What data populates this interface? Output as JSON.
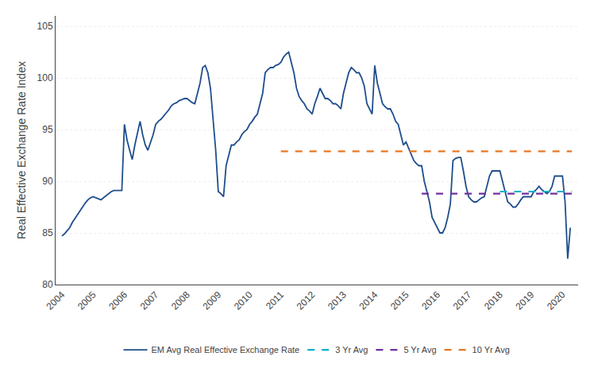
{
  "chart_data": {
    "type": "line",
    "ylabel": "Real Effective Exchange Rate Index",
    "xlim": [
      2003.8,
      2020.5
    ],
    "xticks": [
      2004,
      2005,
      2006,
      2007,
      2008,
      2009,
      2010,
      2011,
      2012,
      2013,
      2014,
      2015,
      2016,
      2017,
      2018,
      2019,
      2020
    ],
    "ylim": [
      80,
      106
    ],
    "yticks": [
      80,
      85,
      90,
      95,
      100,
      105
    ],
    "grid": true,
    "legend": "bottom",
    "series": [
      {
        "name": "EM Avg Real Effective Exchange Rate",
        "color": "#1f4e8c",
        "line_style": "solid",
        "x": [
          2004.0,
          2004.083,
          2004.167,
          2004.25,
          2004.333,
          2004.417,
          2004.5,
          2004.583,
          2004.667,
          2004.75,
          2004.833,
          2004.917,
          2005.0,
          2005.083,
          2005.167,
          2005.25,
          2005.333,
          2005.417,
          2005.5,
          2005.583,
          2005.667,
          2005.75,
          2005.833,
          2005.917,
          2006.0,
          2006.083,
          2006.167,
          2006.25,
          2006.333,
          2006.417,
          2006.5,
          2006.583,
          2006.667,
          2006.75,
          2006.833,
          2006.917,
          2007.0,
          2007.083,
          2007.167,
          2007.25,
          2007.333,
          2007.417,
          2007.5,
          2007.583,
          2007.667,
          2007.75,
          2007.833,
          2007.917,
          2008.0,
          2008.083,
          2008.167,
          2008.25,
          2008.333,
          2008.417,
          2008.5,
          2008.583,
          2008.667,
          2008.75,
          2008.833,
          2008.917,
          2009.0,
          2009.083,
          2009.167,
          2009.25,
          2009.333,
          2009.417,
          2009.5,
          2009.583,
          2009.667,
          2009.75,
          2009.833,
          2009.917,
          2010.0,
          2010.083,
          2010.167,
          2010.25,
          2010.333,
          2010.417,
          2010.5,
          2010.583,
          2010.667,
          2010.75,
          2010.833,
          2010.917,
          2011.0,
          2011.083,
          2011.167,
          2011.25,
          2011.333,
          2011.417,
          2011.5,
          2011.583,
          2011.667,
          2011.75,
          2011.833,
          2011.917,
          2012.0,
          2012.083,
          2012.167,
          2012.25,
          2012.333,
          2012.417,
          2012.5,
          2012.583,
          2012.667,
          2012.75,
          2012.833,
          2012.917,
          2013.0,
          2013.083,
          2013.167,
          2013.25,
          2013.333,
          2013.417,
          2013.5,
          2013.583,
          2013.667,
          2013.75,
          2013.833,
          2013.917,
          2014.0,
          2014.083,
          2014.167,
          2014.25,
          2014.333,
          2014.417,
          2014.5,
          2014.583,
          2014.667,
          2014.75,
          2014.833,
          2014.917,
          2015.0,
          2015.083,
          2015.167,
          2015.25,
          2015.333,
          2015.417,
          2015.5,
          2015.583,
          2015.667,
          2015.75,
          2015.833,
          2015.917,
          2016.0,
          2016.083,
          2016.167,
          2016.25,
          2016.333,
          2016.417,
          2016.5,
          2016.583,
          2016.667,
          2016.75,
          2016.833,
          2016.917,
          2017.0,
          2017.083,
          2017.167,
          2017.25,
          2017.333,
          2017.417,
          2017.5,
          2017.583,
          2017.667,
          2017.75,
          2017.833,
          2017.917,
          2018.0,
          2018.083,
          2018.167,
          2018.25,
          2018.333,
          2018.417,
          2018.5,
          2018.583,
          2018.667,
          2018.75,
          2018.833,
          2018.917,
          2019.0,
          2019.083,
          2019.167,
          2019.25,
          2019.333,
          2019.417,
          2019.5,
          2019.583,
          2019.667,
          2019.75,
          2019.833,
          2019.917,
          2020.0,
          2020.083,
          2020.167,
          2020.25
        ],
        "values": [
          84.7,
          84.9,
          85.2,
          85.5,
          86.0,
          86.4,
          86.8,
          87.2,
          87.6,
          87.9,
          88.2,
          88.4,
          88.5,
          88.4,
          88.3,
          88.2,
          88.4,
          88.6,
          88.8,
          89.0,
          89.1,
          89.1,
          89.1,
          89.1,
          95.5,
          94.0,
          93.0,
          92.1,
          93.5,
          94.6,
          95.8,
          94.5,
          93.5,
          93.0,
          93.8,
          94.5,
          95.5,
          95.8,
          96.0,
          96.3,
          96.6,
          96.9,
          97.3,
          97.5,
          97.6,
          97.8,
          97.9,
          98.0,
          98.0,
          97.8,
          97.6,
          97.5,
          98.5,
          99.5,
          101.0,
          101.2,
          100.5,
          99.0,
          96.0,
          93.0,
          89.0,
          88.8,
          88.5,
          91.5,
          92.5,
          93.5,
          93.5,
          93.8,
          94.0,
          94.5,
          94.8,
          95.0,
          95.5,
          95.8,
          96.2,
          96.5,
          97.5,
          98.5,
          100.5,
          100.8,
          101.0,
          101.0,
          101.2,
          101.3,
          101.5,
          102.0,
          102.3,
          102.5,
          101.5,
          100.5,
          99.0,
          98.2,
          97.8,
          97.5,
          97.0,
          96.8,
          96.5,
          97.5,
          98.2,
          99.0,
          98.5,
          98.0,
          98.0,
          97.8,
          97.5,
          97.5,
          97.3,
          97.0,
          98.5,
          99.5,
          100.5,
          101.0,
          100.8,
          100.5,
          100.5,
          100.0,
          99.2,
          97.5,
          97.0,
          96.5,
          101.2,
          99.5,
          98.5,
          97.5,
          97.2,
          97.0,
          97.0,
          96.5,
          95.8,
          95.5,
          94.5,
          93.5,
          93.8,
          93.2,
          92.5,
          92.0,
          91.7,
          91.5,
          91.5,
          90.0,
          89.0,
          88.0,
          86.5,
          86.0,
          85.5,
          85.0,
          85.0,
          85.5,
          86.5,
          87.8,
          92.0,
          92.2,
          92.3,
          92.3,
          91.0,
          89.5,
          88.5,
          88.2,
          88.0,
          88.0,
          88.2,
          88.4,
          88.5,
          89.5,
          90.5,
          91.0,
          91.0,
          91.0,
          91.0,
          90.0,
          89.0,
          88.0,
          87.8,
          87.5,
          87.5,
          87.8,
          88.2,
          88.5,
          88.5,
          88.5,
          88.5,
          89.0,
          89.2,
          89.5,
          89.2,
          89.0,
          88.8,
          89.0,
          89.5,
          90.5,
          90.5,
          90.5,
          90.5,
          88.0,
          82.5,
          85.5
        ]
      },
      {
        "name": "3 Yr Avg",
        "color": "#00b0c8",
        "line_style": "dashed",
        "x": [
          2018.0,
          2020.3
        ],
        "values": [
          89.0,
          89.0
        ]
      },
      {
        "name": "5 Yr Avg",
        "color": "#7030a0",
        "line_style": "dashed",
        "x": [
          2015.5,
          2020.3
        ],
        "values": [
          88.8,
          88.8
        ]
      },
      {
        "name": "10 Yr Avg",
        "color": "#e87722",
        "line_style": "dashed",
        "x": [
          2011.0,
          2020.3
        ],
        "values": [
          92.9,
          92.9
        ]
      }
    ]
  }
}
